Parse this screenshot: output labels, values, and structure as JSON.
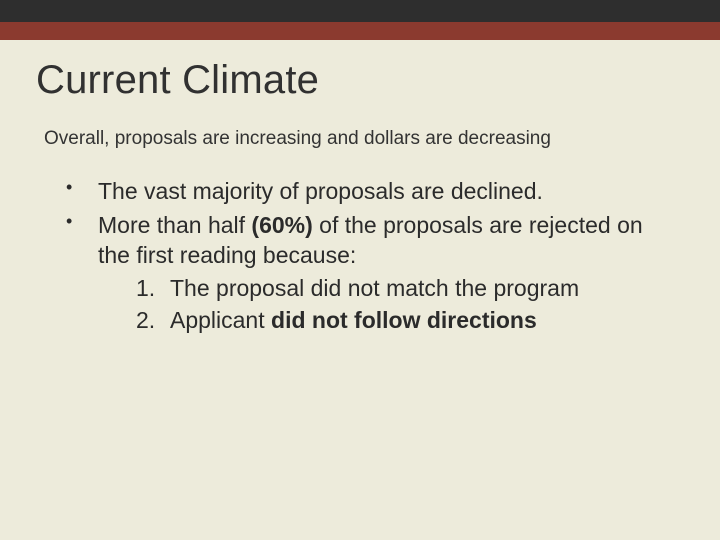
{
  "colors": {
    "background": "#edebdb",
    "top_bar": "#2e2e2e",
    "accent_bar": "#8b3a2f",
    "text": "#2b2b2b"
  },
  "typography": {
    "title_fontsize": 40,
    "subtitle_fontsize": 19,
    "body_fontsize": 23,
    "font_family": "Arial"
  },
  "title": "Current Climate",
  "subtitle": "Overall, proposals are increasing and dollars are decreasing",
  "bullets": [
    {
      "text": "The vast majority of proposals are declined."
    },
    {
      "prefix": "More than half ",
      "bold": "(60%)",
      "suffix": " of the proposals are rejected on the first reading because:",
      "numbered": [
        {
          "text": "The proposal did not match the program"
        },
        {
          "prefix": "Applicant ",
          "bold": "did not follow directions"
        }
      ]
    }
  ]
}
